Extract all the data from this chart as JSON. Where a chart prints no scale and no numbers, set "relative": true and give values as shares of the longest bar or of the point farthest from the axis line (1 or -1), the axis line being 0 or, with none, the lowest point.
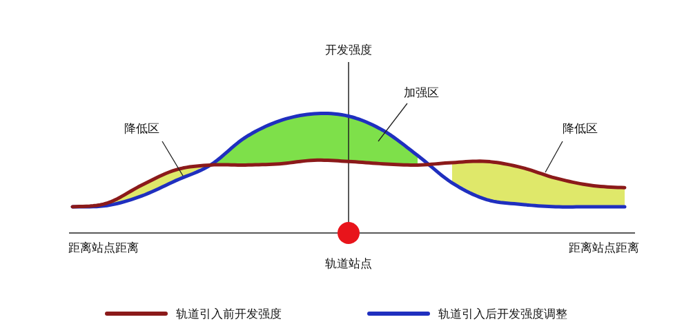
{
  "chart_data": {
    "type": "line",
    "relative": true,
    "ylabel": "开发强度",
    "xlabel": "距离站点距离",
    "categories": [
      null,
      null,
      null,
      null,
      null,
      null,
      null,
      null,
      null,
      null,
      null,
      null,
      null,
      null,
      null,
      null,
      null
    ],
    "series": [
      {
        "name": "轨道引入前开发强度",
        "color": "#8b1a1a",
        "values": [
          0.22,
          0.25,
          0.4,
          0.53,
          0.57,
          0.57,
          0.58,
          0.61,
          0.6,
          0.58,
          0.57,
          0.59,
          0.6,
          0.55,
          0.46,
          0.4,
          0.38
        ],
        "lower": [
          0.22,
          0.23,
          0.31,
          0.44,
          0.57,
          null,
          null,
          null,
          null,
          null,
          null,
          0.42,
          0.28,
          0.24,
          0.22,
          0.22,
          0.22
        ],
        "upper": [
          0.22,
          0.25,
          0.4,
          0.53,
          0.57,
          null,
          null,
          null,
          null,
          null,
          null,
          0.59,
          0.6,
          0.55,
          0.46,
          0.4,
          0.38
        ]
      },
      {
        "name": "轨道引入后开发强度调整",
        "color": "#1f2fbf",
        "values": [
          0.22,
          0.23,
          0.31,
          0.44,
          0.57,
          0.8,
          0.94,
          1,
          0.98,
          0.86,
          0.65,
          0.42,
          0.28,
          0.24,
          0.22,
          0.22,
          0.22
        ],
        "lower": [
          null,
          null,
          null,
          null,
          0.57,
          0.57,
          0.58,
          0.61,
          0.6,
          0.58,
          0.57,
          null,
          null,
          null,
          null,
          null,
          null
        ],
        "upper": [
          null,
          null,
          null,
          null,
          0.57,
          0.8,
          0.94,
          1,
          0.98,
          0.86,
          0.65,
          null,
          null,
          null,
          null,
          null,
          null
        ]
      }
    ],
    "annotations": [
      "距离站点距离",
      "降低区",
      "加强区",
      "降低区",
      "轨道站点"
    ],
    "legend": "bottom",
    "grid": false
  }
}
